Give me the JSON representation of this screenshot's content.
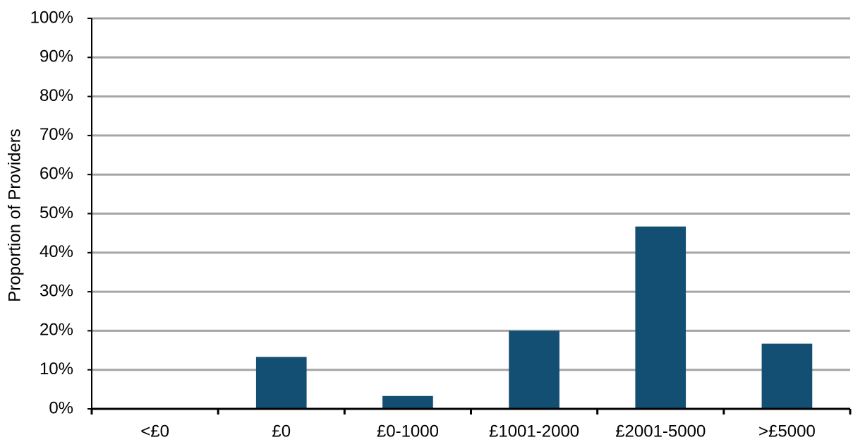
{
  "chart_data": {
    "type": "bar",
    "y_label": "Proportion of Providers",
    "categories": [
      "<£0",
      "£0",
      "£0-1000",
      "£1001-2000",
      "£2001-5000",
      ">£5000"
    ],
    "values": [
      0,
      13.3,
      3.3,
      20,
      46.7,
      16.7
    ],
    "color": "#124f73",
    "ylim": [
      0,
      100
    ],
    "yticks": [
      {
        "value": 0,
        "label": "0%"
      },
      {
        "value": 10,
        "label": "10%"
      },
      {
        "value": 20,
        "label": "20%"
      },
      {
        "value": 30,
        "label": "30%"
      },
      {
        "value": 40,
        "label": "40%"
      },
      {
        "value": 50,
        "label": "50%"
      },
      {
        "value": 60,
        "label": "60%"
      },
      {
        "value": 70,
        "label": "70%"
      },
      {
        "value": 80,
        "label": "80%"
      },
      {
        "value": 90,
        "label": "90%"
      },
      {
        "value": 100,
        "label": "100%"
      }
    ],
    "grid": true
  }
}
